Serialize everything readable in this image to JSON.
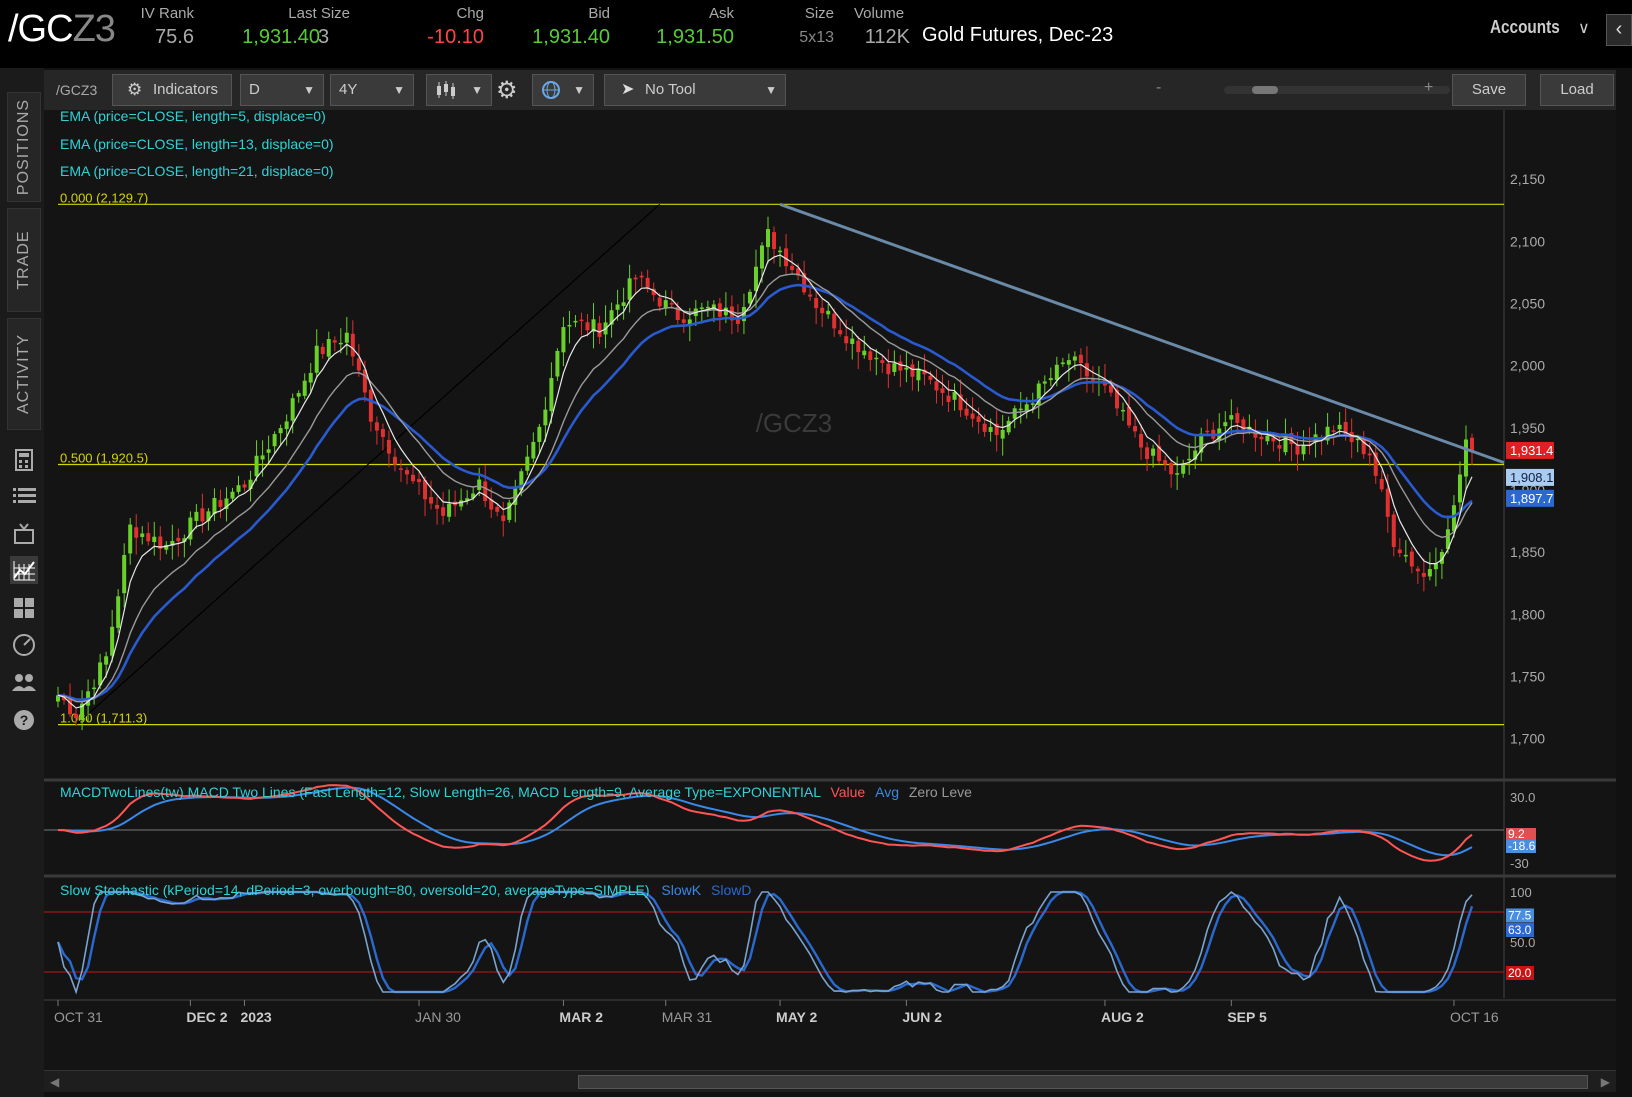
{
  "header": {
    "symbol_main": "/GC",
    "symbol_tail": "Z3",
    "labels": {
      "iv_rank": "IV Rank",
      "last_size": "Last Size",
      "chg": "Chg",
      "bid": "Bid",
      "ask": "Ask",
      "size": "Size",
      "volume": "Volume"
    },
    "values": {
      "iv_rank": "75.6",
      "last": "1,931.40",
      "last_size": "3",
      "chg": "-10.10",
      "bid": "1,931.40",
      "ask": "1,931.50",
      "size": "5x13",
      "volume": "112K"
    },
    "description": "Gold Futures, Dec-23",
    "accounts_label": "Accounts",
    "colors": {
      "up": "#55cc33",
      "down": "#ff4444"
    }
  },
  "left_rail": {
    "tabs": [
      "POSITIONS",
      "TRADE",
      "ACTIVITY"
    ],
    "icons": [
      "calculator-icon",
      "list-icon",
      "tv-icon",
      "chart-icon",
      "grid-icon",
      "gauge-icon",
      "people-icon",
      "help-icon"
    ],
    "help_glyph": "?"
  },
  "toolbar": {
    "symbol": "/GCZ3",
    "indicators_label": "Indicators",
    "aggregation": "D",
    "range": "4Y",
    "tool_label": "No Tool",
    "zoom_minus": "-",
    "zoom_plus": "+",
    "save_label": "Save",
    "load_label": "Load"
  },
  "studies": {
    "ema5": "EMA (price=CLOSE, length=5, displace=0)",
    "ema13": "EMA (price=CLOSE, length=13, displace=0)",
    "ema21": "EMA (price=CLOSE, length=21, displace=0)",
    "macd_title": "MACDTwoLines(tw) MACD Two Lines (Fast Length=12, Slow Length=26, MACD Length=9, Average Type=EXPONENTIAL",
    "macd_value": "Value",
    "macd_avg": "Avg",
    "macd_zero": "Zero Leve",
    "stoch_title": "Slow Stochastic (kPeriod=14, dPeriod=3, overbought=80, oversold=20, averageType=SIMPLE)",
    "stoch_k": "SlowK",
    "stoch_d": "SlowD"
  },
  "chart_data": {
    "type": "candlestick",
    "watermark": "/GCZ3",
    "y_ticks": [
      1700,
      1750,
      1800,
      1850,
      1900,
      1950,
      2000,
      2050,
      2100,
      2150
    ],
    "y_tick_labels": [
      "1,700",
      "1,750",
      "1,800",
      "1,850",
      "1,900",
      "1,950",
      "2,000",
      "2,050",
      "2,100",
      "2,150"
    ],
    "ylim": [
      1670,
      2175
    ],
    "fib_levels": [
      {
        "label": "0.000 (2,129.7)",
        "price": 2129.7
      },
      {
        "label": "0.500 (1,920.5)",
        "price": 1920.5
      },
      {
        "label": "1.000 (1,711.3)",
        "price": 1711.3
      }
    ],
    "price_tags": [
      {
        "text": "1,931.4",
        "price": 1931.4,
        "color": "#e02020"
      },
      {
        "text": "1,908.1",
        "price": 1908.1,
        "color": "#aaccee"
      },
      {
        "text": "1,897.7",
        "price": 1897.7,
        "color": "#2a6ad0"
      }
    ],
    "x_labels": [
      "OCT 31",
      "DEC 2",
      "2023",
      "JAN 30",
      "MAR 2",
      "MAR 31",
      "MAY 2",
      "JUN 2",
      "AUG 2",
      "SEP 5",
      "OCT 16"
    ],
    "x_label_bold": [
      false,
      true,
      true,
      false,
      true,
      false,
      true,
      true,
      true,
      true,
      false
    ],
    "x_label_bar_index": [
      0,
      22,
      31,
      60,
      84,
      101,
      120,
      141,
      174,
      195,
      232
    ],
    "total_bars": 236,
    "trendline": {
      "from": {
        "bar": 120,
        "price": 2129.7
      },
      "to": {
        "bar": 240,
        "price": 1920
      }
    },
    "fib_anchor_line": {
      "from": {
        "bar": 3,
        "price": 1711.3
      },
      "to": {
        "bar": 100,
        "price": 2129.7
      }
    },
    "price_keyframes": [
      [
        0,
        1735
      ],
      [
        3,
        1720
      ],
      [
        8,
        1765
      ],
      [
        12,
        1870
      ],
      [
        18,
        1855
      ],
      [
        24,
        1880
      ],
      [
        31,
        1905
      ],
      [
        38,
        1960
      ],
      [
        43,
        2010
      ],
      [
        48,
        2025
      ],
      [
        52,
        1960
      ],
      [
        58,
        1910
      ],
      [
        64,
        1880
      ],
      [
        70,
        1905
      ],
      [
        74,
        1870
      ],
      [
        80,
        1950
      ],
      [
        84,
        2035
      ],
      [
        90,
        2030
      ],
      [
        96,
        2070
      ],
      [
        103,
        2040
      ],
      [
        108,
        2045
      ],
      [
        113,
        2040
      ],
      [
        118,
        2105
      ],
      [
        122,
        2080
      ],
      [
        126,
        2050
      ],
      [
        132,
        2020
      ],
      [
        138,
        2000
      ],
      [
        144,
        1990
      ],
      [
        150,
        1970
      ],
      [
        156,
        1945
      ],
      [
        162,
        1975
      ],
      [
        168,
        2005
      ],
      [
        174,
        1980
      ],
      [
        180,
        1935
      ],
      [
        186,
        1910
      ],
      [
        190,
        1940
      ],
      [
        194,
        1955
      ],
      [
        200,
        1945
      ],
      [
        206,
        1935
      ],
      [
        212,
        1950
      ],
      [
        218,
        1930
      ],
      [
        222,
        1860
      ],
      [
        227,
        1830
      ],
      [
        231,
        1865
      ],
      [
        234,
        1935
      ],
      [
        235,
        1931
      ]
    ],
    "macd_axis_labels": [
      "30.0",
      "-30"
    ],
    "macd_tags": [
      {
        "text": "9.2",
        "color": "#e05050"
      },
      {
        "text": "-18.6",
        "color": "#4a8ee0"
      }
    ],
    "macd_ylim": [
      -40,
      40
    ],
    "stoch_axis_labels": [
      "100",
      "50.0"
    ],
    "stoch_tags": [
      {
        "text": "77.5",
        "color": "#4a8ee0"
      },
      {
        "text": "63.0",
        "color": "#2a6ad0"
      },
      {
        "text": "20.0",
        "color": "#cc1111"
      }
    ],
    "stoch_overbought": 80,
    "stoch_oversold": 20,
    "series_colors": {
      "ema5": "#e8e8e8",
      "ema13": "#9a9a9a",
      "ema21": "#2a5ad0",
      "macd_value": "#ff5555",
      "macd_avg": "#3a88e8",
      "fib": "#d4d400",
      "trend": "#6a8aa8"
    }
  }
}
